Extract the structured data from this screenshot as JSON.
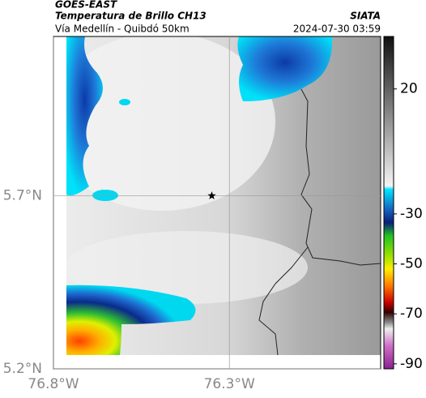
{
  "header": {
    "source": "GOES-EAST",
    "title": "Temperatura de Brillo CH13",
    "subtitle": "Vía Medellín - Quibdó 50km",
    "agency": "SIATA",
    "datetime": "2024-07-30 03:59"
  },
  "map": {
    "xlim": [
      -76.8,
      -75.87
    ],
    "ylim": [
      5.2,
      6.16
    ],
    "xticks": [
      {
        "value": -76.8,
        "label": "76.8°W"
      },
      {
        "value": -76.3,
        "label": "76.3°W"
      }
    ],
    "yticks": [
      {
        "value": 5.2,
        "label": "5.2°N"
      },
      {
        "value": 5.7,
        "label": "5.7°N"
      }
    ],
    "grid": true,
    "marker": {
      "lon": -76.35,
      "lat": 5.7
    }
  },
  "colorbar": {
    "lim": [
      -92,
      41
    ],
    "ticks": [
      20,
      -30,
      -50,
      -70,
      -90
    ]
  }
}
